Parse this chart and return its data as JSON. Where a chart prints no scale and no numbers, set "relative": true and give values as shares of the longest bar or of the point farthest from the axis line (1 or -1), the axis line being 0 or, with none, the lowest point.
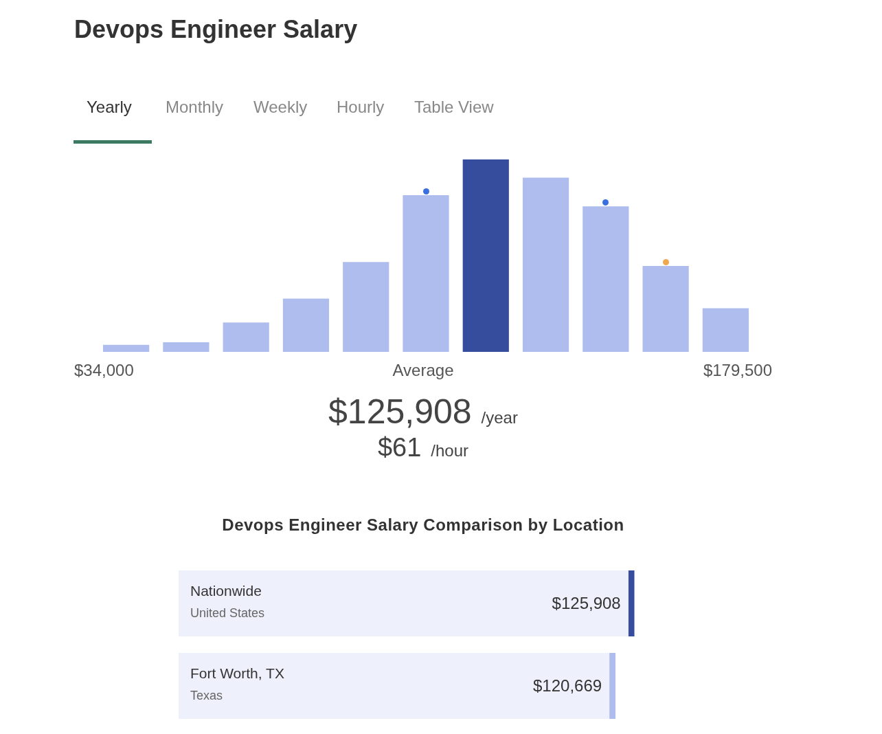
{
  "chart_data": [
    {
      "type": "bar",
      "title": "Devops Engineer Salary",
      "relative": true,
      "tick_labels": false,
      "grid": false,
      "legend": false,
      "categories": [
        null,
        null,
        null,
        null,
        null,
        null,
        null,
        null,
        null,
        null,
        null
      ],
      "series": [
        {
          "type": "bar",
          "colors": [
            "#aebcee",
            "#aebcee",
            "#aebcee",
            "#aebcee",
            "#aebcee",
            "#aebcee",
            "#364c9c",
            "#aebcee",
            "#aebcee",
            "#aebcee",
            "#aebcee"
          ],
          "values": [
            0.037,
            0.05,
            0.153,
            0.277,
            0.467,
            0.814,
            1,
            0.905,
            0.756,
            0.446,
            0.227
          ]
        }
      ],
      "annotations": [
        "Yearly",
        "Monthly",
        "Weekly",
        "Hourly",
        "Table View",
        "$34,000",
        "Average",
        "$179,500",
        "$125,908",
        "/year",
        "$61",
        "/hour"
      ]
    },
    {
      "type": "bar",
      "orientation": "horizontal",
      "title": "Devops Engineer Salary Comparison by Location",
      "tick_labels": false,
      "grid": false,
      "legend": false,
      "categories": [
        "Nationwide\nUnited States",
        "Fort Worth, TX\nTexas"
      ],
      "values": [
        125908,
        120669
      ],
      "value_labels": [
        "$125,908",
        "$120,669"
      ],
      "colors": [
        "#eef0fb",
        "#eef0fb"
      ]
    }
  ]
}
